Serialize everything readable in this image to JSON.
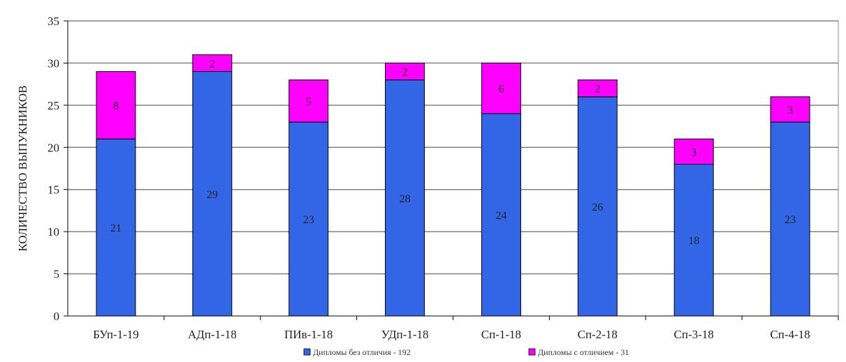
{
  "chart_data": {
    "type": "bar",
    "stacked": true,
    "categories": [
      "БУп-1-19",
      "АДп-1-18",
      "ПИв-1-18",
      "УДп-1-18",
      "Сп-1-18",
      "Сп-2-18",
      "Сп-3-18",
      "Сп-4-18"
    ],
    "series": [
      {
        "name": "Дипломы без отличия - 192",
        "values": [
          21,
          29,
          23,
          28,
          24,
          26,
          18,
          23
        ],
        "color": "#3366e6"
      },
      {
        "name": "Дипломы с отличием - 31",
        "values": [
          8,
          2,
          5,
          2,
          6,
          2,
          3,
          3
        ],
        "color": "#ff00ff"
      }
    ],
    "data_labels": [
      [
        "21",
        "29",
        "23",
        "28",
        "24",
        "26",
        "18",
        "23"
      ],
      [
        "8",
        "2",
        "5",
        "2",
        "6",
        "2",
        "3",
        "3"
      ]
    ],
    "ylabel": "КОЛИЧЕСТВО ВЫПУКНИКОВ",
    "xlabel": "",
    "title": "",
    "ylim": [
      0,
      35
    ],
    "yticks": [
      0,
      5,
      10,
      15,
      20,
      25,
      30,
      35
    ],
    "grid": true,
    "legend": "bottom"
  }
}
